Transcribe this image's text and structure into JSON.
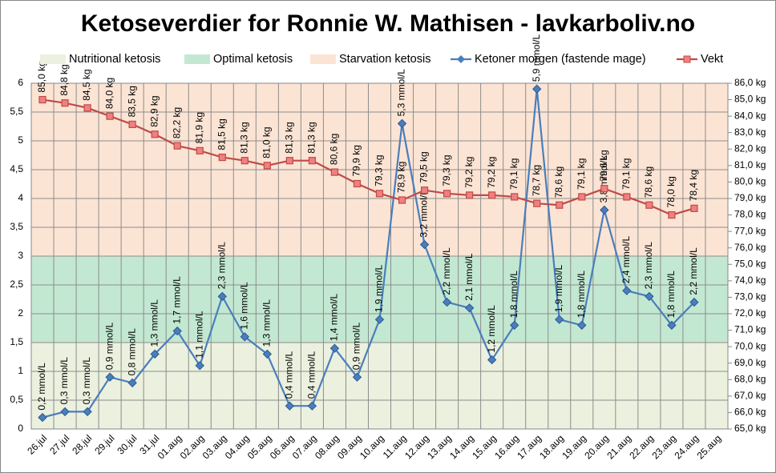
{
  "chart_data": {
    "type": "line",
    "title": "Ketoseverdier for Ronnie W. Mathisen - lavkarboliv.no",
    "categories": [
      "26.jul",
      "27.jul",
      "28.jul",
      "29.jul",
      "30.jul",
      "31.jul",
      "01.aug",
      "02.aug",
      "03.aug",
      "04.aug",
      "05.aug",
      "06.aug",
      "07.aug",
      "08.aug",
      "09.aug",
      "10.aug",
      "11.aug",
      "12.aug",
      "13.aug",
      "14.aug",
      "15.aug",
      "16.aug",
      "17.aug",
      "18.aug",
      "19.aug",
      "20.aug",
      "21.aug",
      "22.aug",
      "23.aug",
      "24.aug",
      "25.aug"
    ],
    "bands": [
      {
        "name": "Nutritional ketosis",
        "color": "#ebf1de",
        "value": 1.5
      },
      {
        "name": "Optimal ketosis",
        "color": "#c3e8d2",
        "value": 1.5
      },
      {
        "name": "Starvation ketosis",
        "color": "#fce4d4",
        "value": 3
      }
    ],
    "series": [
      {
        "name": "Ketoner morgen (fastende mage)",
        "color": "#4a7ebb",
        "marker": "diamond",
        "values": [
          0.2,
          0.3,
          0.3,
          0.9,
          0.8,
          1.3,
          1.7,
          1.1,
          2.3,
          1.6,
          1.3,
          0.4,
          0.4,
          1.4,
          0.9,
          1.9,
          5.3,
          3.2,
          2.2,
          2.1,
          1.2,
          1.8,
          5.9,
          1.9,
          1.8,
          3.8,
          2.4,
          2.3,
          1.8,
          2.2,
          null
        ],
        "value_labels": [
          "0,2 mmol/L",
          "0,3 mmol/L",
          "0,3 mmol/L",
          "0,9 mmol/L",
          "0,8 mmol/L",
          "1,3 mmol/L",
          "1,7 mmol/L",
          "1,1 mmol/L",
          "2,3 mmol/L",
          "1,6 mmol/L",
          "1,3 mmol/L",
          "0,4 mmol/L",
          "0,4 mmol/L",
          "1,4 mmol/L",
          "0,9 mmol/L",
          "1,9 mmol/L",
          "5,3 mmol/L",
          "3,2 mmol/L",
          "2,2 mmol/L",
          "2,1 mmol/L",
          "1,2 mmol/L",
          "1,8 mmol/L",
          "5,9 mmol/L",
          "1,9 mmol/L",
          "1,8 mmol/L",
          "3,8 mmol/L",
          "2,4 mmol/L",
          "2,3 mmol/L",
          "1,8 mmol/L",
          "2,2 mmol/L",
          null
        ]
      },
      {
        "name": "Vekt",
        "color": "#be4b48",
        "marker": "square",
        "axis": "y2",
        "values": [
          85.0,
          84.8,
          84.5,
          84.0,
          83.5,
          82.9,
          82.2,
          81.9,
          81.5,
          81.3,
          81.0,
          81.3,
          81.3,
          80.6,
          79.9,
          79.3,
          78.9,
          79.5,
          79.3,
          79.2,
          79.2,
          79.1,
          78.7,
          78.6,
          79.1,
          79.6,
          79.1,
          78.6,
          78.0,
          78.4,
          null
        ],
        "value_labels": [
          "85,0 kg",
          "84,8 kg",
          "84,5 kg",
          "84,0 kg",
          "83,5 kg",
          "82,9 kg",
          "82,2 kg",
          "81,9 kg",
          "81,5 kg",
          "81,3 kg",
          "81,0 kg",
          "81,3 kg",
          "81,3 kg",
          "80,6 kg",
          "79,9 kg",
          "79,3 kg",
          "78,9 kg",
          "79,5 kg",
          "79,3 kg",
          "79,2 kg",
          "79,2 kg",
          "79,1 kg",
          "78,7 kg",
          "78,6 kg",
          "79,1 kg",
          "79,6 kg",
          "79,1 kg",
          "78,6 kg",
          "78,0 kg",
          "78,4 kg",
          null
        ]
      }
    ],
    "ylim": [
      0,
      6
    ],
    "yticks": [
      0,
      {
        "value": 0.5,
        "label": "0,5"
      },
      1,
      {
        "value": 1.5,
        "label": "1,5"
      },
      2,
      {
        "value": 2.5,
        "label": "2,5"
      },
      3,
      {
        "value": 3.5,
        "label": "3,5"
      },
      4,
      {
        "value": 4.5,
        "label": "4,5"
      },
      5,
      {
        "value": 5.5,
        "label": "5,5"
      },
      6
    ],
    "y2lim": [
      65,
      86
    ],
    "y2ticks": [
      {
        "value": 65,
        "label": "65,0 kg"
      },
      {
        "value": 66,
        "label": "66,0 kg"
      },
      {
        "value": 67,
        "label": "67,0 kg"
      },
      {
        "value": 68,
        "label": "68,0 kg"
      },
      {
        "value": 69,
        "label": "69,0 kg"
      },
      {
        "value": 70,
        "label": "70,0 kg"
      },
      {
        "value": 71,
        "label": "71,0 kg"
      },
      {
        "value": 72,
        "label": "72,0 kg"
      },
      {
        "value": 73,
        "label": "73,0 kg"
      },
      {
        "value": 74,
        "label": "74,0 kg"
      },
      {
        "value": 75,
        "label": "75,0 kg"
      },
      {
        "value": 76,
        "label": "76,0 kg"
      },
      {
        "value": 77,
        "label": "77,0 kg"
      },
      {
        "value": 78,
        "label": "78,0 kg"
      },
      {
        "value": 79,
        "label": "79,0 kg"
      },
      {
        "value": 80,
        "label": "80,0 kg"
      },
      {
        "value": 81,
        "label": "81,0 kg"
      },
      {
        "value": 82,
        "label": "82,0 kg"
      },
      {
        "value": 83,
        "label": "83,0 kg"
      },
      {
        "value": 84,
        "label": "84,0 kg"
      },
      {
        "value": 85,
        "label": "85,0 kg"
      },
      {
        "value": 86,
        "label": "86,0 kg"
      }
    ],
    "y2_label_color": "#9b2d2a",
    "ytick_color": "#3060a8",
    "grid": true
  }
}
